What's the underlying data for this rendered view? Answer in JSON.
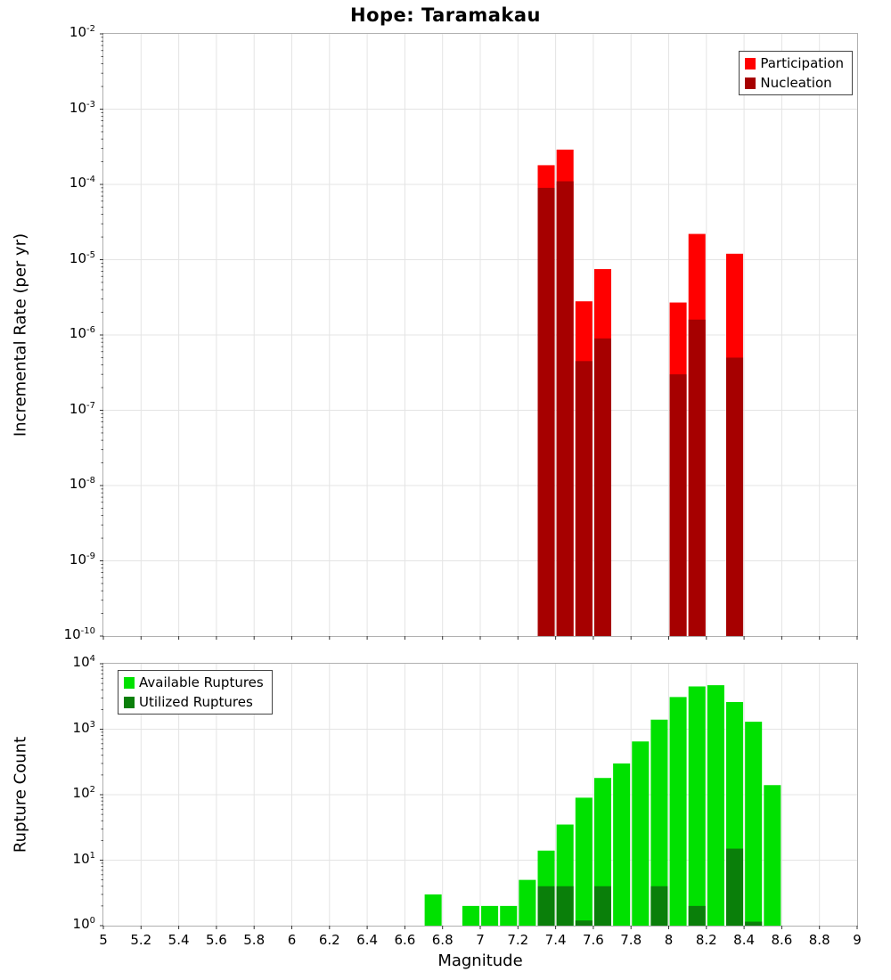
{
  "x_ticks": [
    "5",
    "5.2",
    "5.4",
    "5.6",
    "5.8",
    "6",
    "6.2",
    "6.4",
    "6.6",
    "6.8",
    "7",
    "7.2",
    "7.4",
    "7.6",
    "7.8",
    "8",
    "8.2",
    "8.4",
    "8.6",
    "8.8",
    "9"
  ],
  "chart_data": [
    {
      "type": "bar",
      "panel": "top",
      "title": "Hope: Taramakau",
      "xlabel": "",
      "ylabel": "Incremental Rate (per yr)",
      "xlim": [
        5,
        9
      ],
      "yscale": "log",
      "ylim": [
        1e-10,
        0.01
      ],
      "y_tick_exponents": [
        -2,
        -3,
        -4,
        -5,
        -6,
        -7,
        -8,
        -9,
        -10
      ],
      "bar_width": 0.1,
      "grid": true,
      "legend_position": "upper right",
      "series": [
        {
          "name": "Participation",
          "color": "#ff0000",
          "x": [
            7.35,
            7.45,
            7.55,
            7.65,
            8.05,
            8.15,
            8.35
          ],
          "y": [
            0.00018,
            0.00029,
            2.8e-06,
            7.5e-06,
            2.7e-06,
            2.2e-05,
            1.2e-05
          ]
        },
        {
          "name": "Nucleation",
          "color": "#a60000",
          "x": [
            7.35,
            7.45,
            7.55,
            7.65,
            8.05,
            8.15,
            8.35
          ],
          "y": [
            9e-05,
            0.00011,
            4.5e-07,
            9e-07,
            3e-07,
            1.6e-06,
            5e-07
          ]
        }
      ]
    },
    {
      "type": "bar",
      "panel": "bottom",
      "title": "",
      "xlabel": "Magnitude",
      "ylabel": "Rupture Count",
      "xlim": [
        5,
        9
      ],
      "yscale": "log",
      "ylim": [
        1,
        10000
      ],
      "y_tick_exponents": [
        4,
        3,
        2,
        1,
        0
      ],
      "bar_width": 0.1,
      "grid": true,
      "legend_position": "upper left",
      "series": [
        {
          "name": "Available Ruptures",
          "color": "#00e100",
          "x": [
            6.75,
            6.95,
            7.05,
            7.15,
            7.25,
            7.35,
            7.45,
            7.55,
            7.65,
            7.75,
            7.85,
            7.95,
            8.05,
            8.15,
            8.25,
            8.35,
            8.45,
            8.55
          ],
          "y": [
            3,
            2,
            2,
            2,
            5,
            14,
            35,
            90,
            180,
            300,
            650,
            1400,
            3100,
            4500,
            4700,
            2600,
            1300,
            140
          ]
        },
        {
          "name": "Utilized Ruptures",
          "color": "#0a7f0a",
          "x": [
            7.35,
            7.45,
            7.55,
            7.65,
            7.95,
            8.15,
            8.35,
            8.45
          ],
          "y": [
            4,
            4,
            1.2,
            4,
            4,
            2,
            15,
            1.15
          ]
        }
      ]
    }
  ]
}
